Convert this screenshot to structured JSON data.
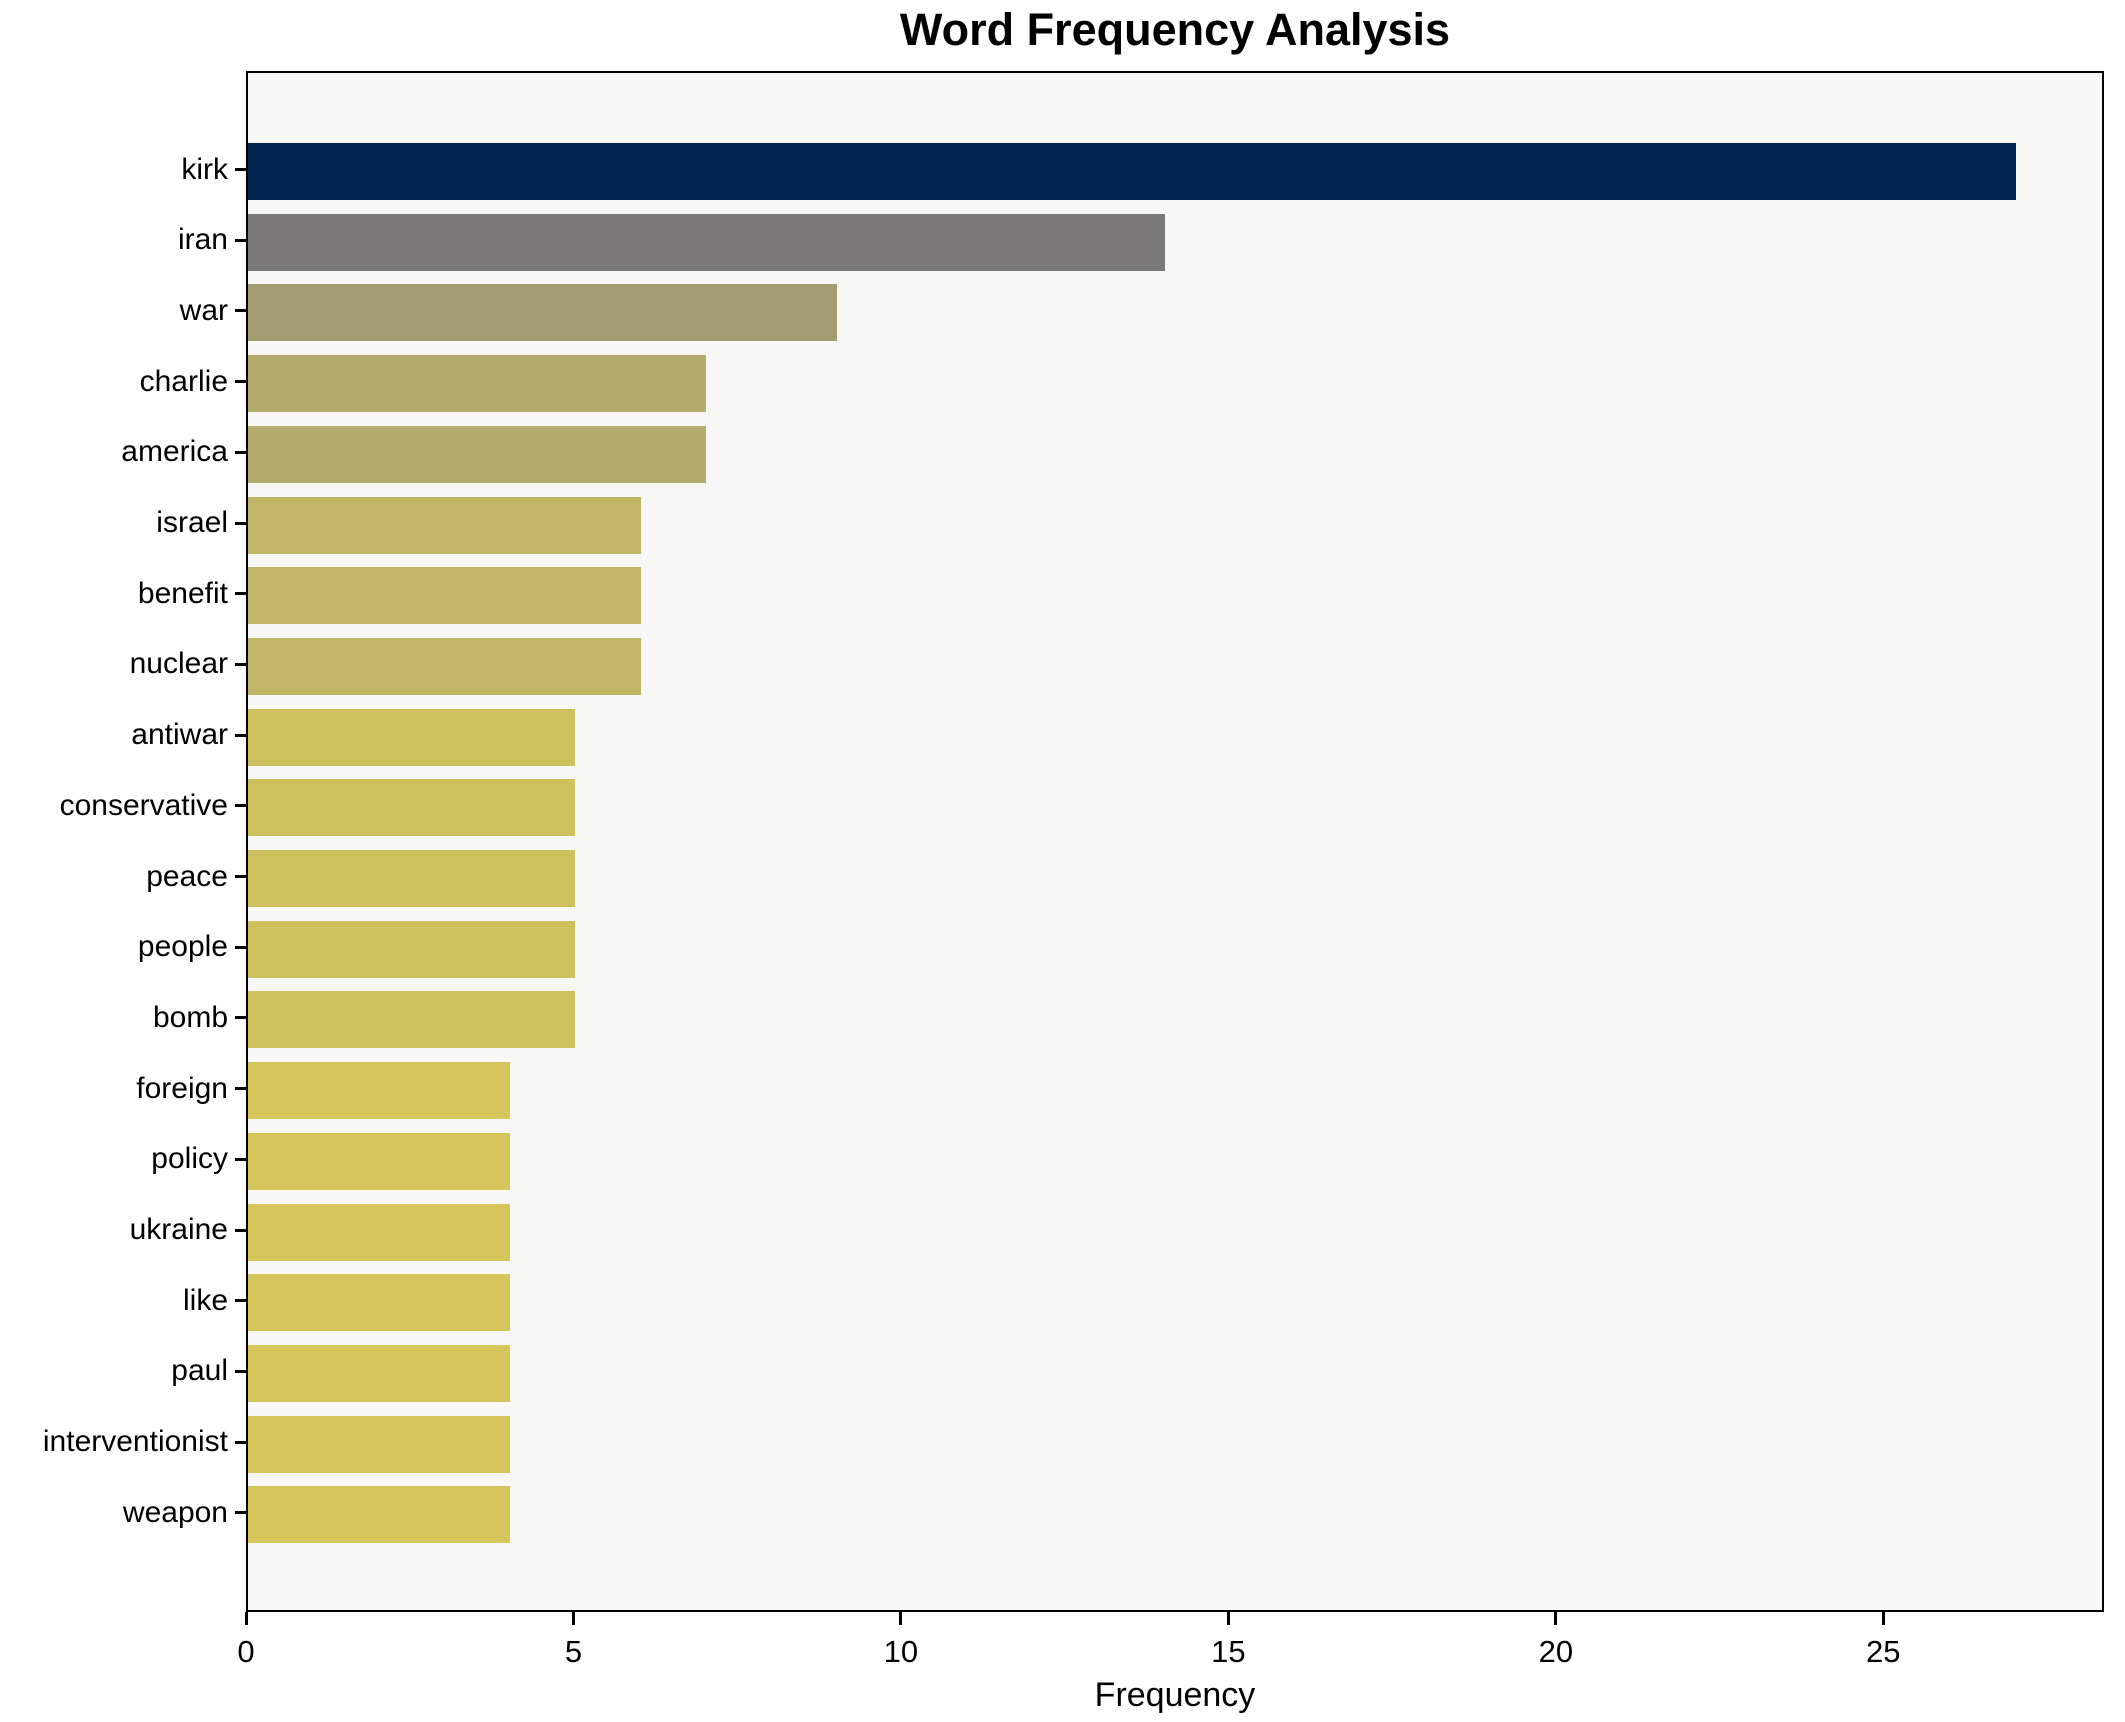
{
  "chart_data": {
    "type": "bar",
    "orientation": "horizontal",
    "title": "Word Frequency Analysis",
    "xlabel": "Frequency",
    "ylabel": "",
    "categories": [
      "kirk",
      "iran",
      "war",
      "charlie",
      "america",
      "israel",
      "benefit",
      "nuclear",
      "antiwar",
      "conservative",
      "peace",
      "people",
      "bomb",
      "foreign",
      "policy",
      "ukraine",
      "like",
      "paul",
      "interventionist",
      "weapon"
    ],
    "values": [
      27,
      14,
      9,
      7,
      7,
      6,
      6,
      6,
      5,
      5,
      5,
      5,
      5,
      4,
      4,
      4,
      4,
      4,
      4,
      4
    ],
    "bar_colors": [
      "#032350",
      "#7a7977",
      "#a49c71",
      "#b5ab6c",
      "#b5ab6c",
      "#c3b667",
      "#c3b667",
      "#c3b667",
      "#cfc05e",
      "#cfc05e",
      "#cfc05e",
      "#cfc05e",
      "#cfc05e",
      "#d6c55b",
      "#d6c55b",
      "#d6c55b",
      "#d6c55b",
      "#d6c55b",
      "#d6c55b",
      "#d6c55b"
    ],
    "xticks": [
      0,
      5,
      10,
      15,
      20,
      25
    ],
    "xlim": [
      0,
      28.37
    ],
    "grid": false,
    "legend": false,
    "plot_bg": "#f7f7f5",
    "figure_bg": "#ffffff",
    "spine_color": "#000000",
    "text_color": "#000000"
  }
}
